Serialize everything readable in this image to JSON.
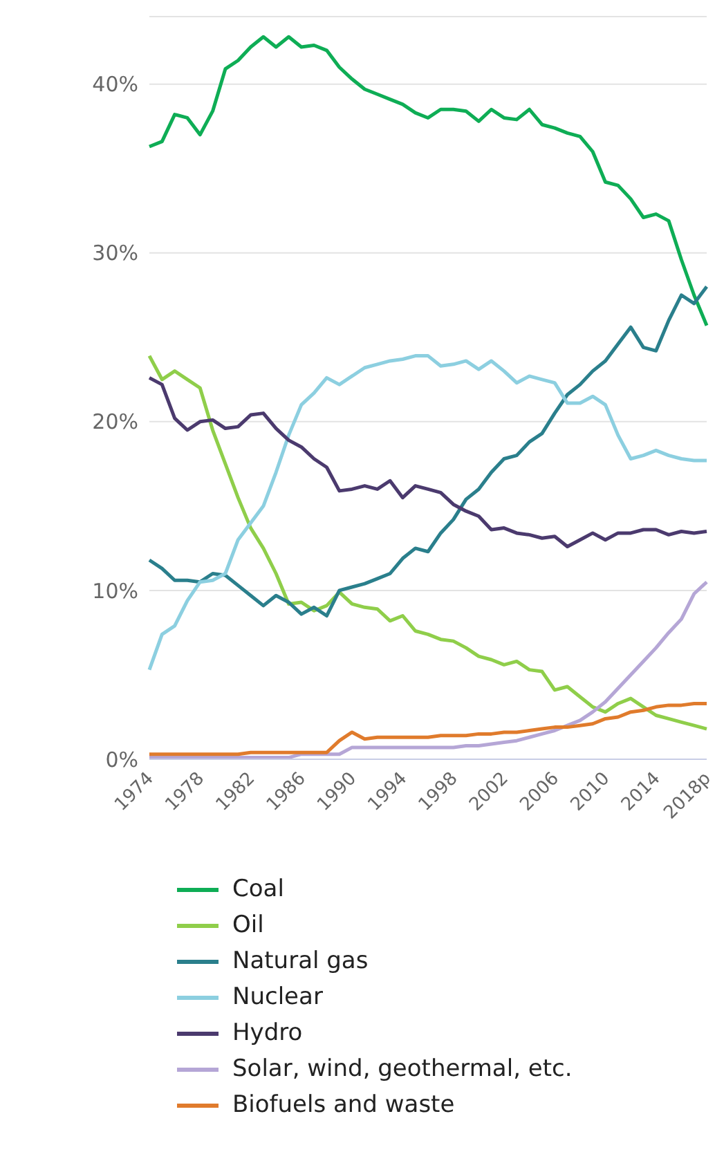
{
  "chart_data": {
    "type": "line",
    "categories": [
      "1974",
      null,
      null,
      null,
      "1978",
      null,
      null,
      null,
      "1982",
      null,
      null,
      null,
      "1986",
      null,
      null,
      null,
      "1990",
      null,
      null,
      null,
      "1994",
      null,
      null,
      null,
      "1998",
      null,
      null,
      null,
      "2002",
      null,
      null,
      null,
      "2006",
      null,
      null,
      null,
      "2010",
      null,
      null,
      null,
      "2014",
      null,
      null,
      null,
      "2018p"
    ],
    "series": [
      {
        "name": "Coal",
        "color": "#0ead55",
        "values": [
          36.3,
          36.6,
          38.2,
          38.0,
          37.0,
          38.4,
          40.9,
          41.4,
          42.2,
          42.8,
          42.2,
          42.8,
          42.2,
          42.3,
          42.0,
          41.0,
          40.3,
          39.7,
          39.4,
          39.1,
          38.8,
          38.3,
          38.0,
          38.5,
          38.5,
          38.4,
          37.8,
          38.5,
          38.0,
          37.9,
          38.5,
          37.6,
          37.4,
          37.1,
          36.9,
          36.0,
          34.2,
          34.0,
          33.2,
          32.1,
          32.3,
          31.9,
          29.6,
          27.5,
          25.7
        ]
      },
      {
        "name": "Oil",
        "color": "#8fce4a",
        "values": [
          23.9,
          22.5,
          23.0,
          22.5,
          22.0,
          19.5,
          17.5,
          15.5,
          13.7,
          12.5,
          11.0,
          9.2,
          9.3,
          8.8,
          9.1,
          9.9,
          9.2,
          9.0,
          8.9,
          8.2,
          8.5,
          7.6,
          7.4,
          7.1,
          7.0,
          6.6,
          6.1,
          5.9,
          5.6,
          5.8,
          5.3,
          5.2,
          4.1,
          4.3,
          3.7,
          3.1,
          2.8,
          3.3,
          3.6,
          3.1,
          2.6,
          2.4,
          2.2,
          2.0,
          1.8
        ]
      },
      {
        "name": "Natural gas",
        "color": "#2a7f8c",
        "values": [
          11.8,
          11.3,
          10.6,
          10.6,
          10.5,
          11.0,
          10.9,
          10.3,
          9.7,
          9.1,
          9.7,
          9.3,
          8.6,
          9.0,
          8.5,
          10.0,
          10.2,
          10.4,
          10.7,
          11.0,
          11.9,
          12.5,
          12.3,
          13.4,
          14.2,
          15.4,
          16.0,
          17.0,
          17.8,
          18.0,
          18.8,
          19.3,
          20.5,
          21.6,
          22.2,
          23.0,
          23.6,
          24.6,
          25.6,
          24.4,
          24.2,
          26.0,
          27.5,
          27.0,
          28.0
        ]
      },
      {
        "name": "Nuclear",
        "color": "#8ccfe0",
        "values": [
          5.3,
          7.4,
          7.9,
          9.4,
          10.5,
          10.6,
          11.0,
          13.0,
          14.0,
          15.0,
          17.0,
          19.2,
          21.0,
          21.7,
          22.6,
          22.2,
          22.7,
          23.2,
          23.4,
          23.6,
          23.7,
          23.9,
          23.9,
          23.3,
          23.4,
          23.6,
          23.1,
          23.6,
          23.0,
          22.3,
          22.7,
          22.5,
          22.3,
          21.1,
          21.1,
          21.5,
          21.0,
          19.2,
          17.8,
          18.0,
          18.3,
          18.0,
          17.8,
          17.7,
          17.7
        ]
      },
      {
        "name": "Hydro",
        "color": "#4b3a6e",
        "values": [
          22.6,
          22.2,
          20.2,
          19.5,
          20.0,
          20.1,
          19.6,
          19.7,
          20.4,
          20.5,
          19.6,
          18.9,
          18.5,
          17.8,
          17.3,
          15.9,
          16.0,
          16.2,
          16.0,
          16.5,
          15.5,
          16.2,
          16.0,
          15.8,
          15.1,
          14.7,
          14.4,
          13.6,
          13.7,
          13.4,
          13.3,
          13.1,
          13.2,
          12.6,
          13.0,
          13.4,
          13.0,
          13.4,
          13.4,
          13.6,
          13.6,
          13.3,
          13.5,
          13.4,
          13.5
        ]
      },
      {
        "name": "Solar, wind, geothermal, etc.",
        "color": "#b5a6d6",
        "values": [
          0.1,
          0.1,
          0.1,
          0.1,
          0.1,
          0.1,
          0.1,
          0.1,
          0.1,
          0.1,
          0.1,
          0.1,
          0.3,
          0.3,
          0.3,
          0.3,
          0.7,
          0.7,
          0.7,
          0.7,
          0.7,
          0.7,
          0.7,
          0.7,
          0.7,
          0.8,
          0.8,
          0.9,
          1.0,
          1.1,
          1.3,
          1.5,
          1.7,
          2.0,
          2.3,
          2.8,
          3.4,
          4.2,
          5.0,
          5.8,
          6.6,
          7.5,
          8.3,
          9.8,
          10.5
        ]
      },
      {
        "name": "Biofuels and waste",
        "color": "#e07b2c",
        "values": [
          0.3,
          0.3,
          0.3,
          0.3,
          0.3,
          0.3,
          0.3,
          0.3,
          0.4,
          0.4,
          0.4,
          0.4,
          0.4,
          0.4,
          0.4,
          1.1,
          1.6,
          1.2,
          1.3,
          1.3,
          1.3,
          1.3,
          1.3,
          1.4,
          1.4,
          1.4,
          1.5,
          1.5,
          1.6,
          1.6,
          1.7,
          1.8,
          1.9,
          1.9,
          2.0,
          2.1,
          2.4,
          2.5,
          2.8,
          2.9,
          3.1,
          3.2,
          3.2,
          3.3,
          3.3
        ]
      }
    ],
    "ylim": [
      0,
      44
    ],
    "yticks": [
      {
        "value": 0,
        "label": "0%"
      },
      {
        "value": 10,
        "label": "10%"
      },
      {
        "value": 20,
        "label": "20%"
      },
      {
        "value": 30,
        "label": "30%"
      },
      {
        "value": 40,
        "label": "40%"
      }
    ],
    "grid": "y",
    "legend": "bottom"
  }
}
